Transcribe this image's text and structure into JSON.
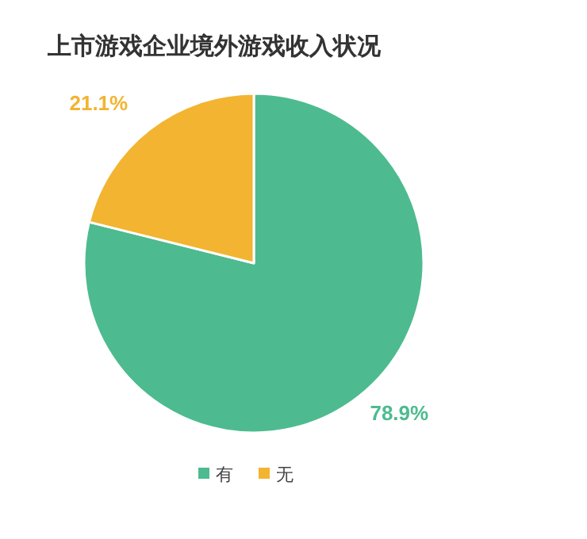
{
  "chart_data": {
    "type": "pie",
    "title": "上市游戏企业境外游戏收入状况",
    "categories": [
      "有",
      "无"
    ],
    "values": [
      78.9,
      21.1
    ],
    "colors": [
      "#4dbb8f",
      "#f2b431"
    ],
    "value_labels": [
      "78.9%",
      "21.1%"
    ],
    "legend": "bottom"
  }
}
